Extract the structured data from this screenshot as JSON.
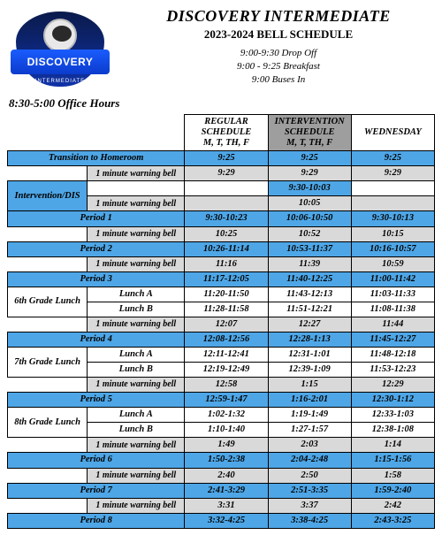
{
  "logo": {
    "name": "DISCOVERY",
    "sub": "INTERMEDIATE"
  },
  "title": {
    "main": "DISCOVERY INTERMEDIATE",
    "sub": "2023-2024 BELL SCHEDULE",
    "note1": "9:00-9:30 Drop Off",
    "note2": "9:00 - 9:25 Breakfast",
    "note3": "9:00  Buses In"
  },
  "office": "8:30-5:00 Office Hours",
  "cols": {
    "regular1": "REGULAR",
    "regular2": "SCHEDULE",
    "regular3": "M, T, TH, F",
    "int1": "INTERVENTION",
    "int2": "SCHEDULE",
    "int3": "M, T, TH, F",
    "wed": "WEDNESDAY"
  },
  "labels": {
    "transition": "Transition to Homeroom",
    "warn": "1 minute warning bell",
    "interv": "Intervention/DIS",
    "p1": "Period 1",
    "p2": "Period 2",
    "p3": "Period 3",
    "p4": "Period 4",
    "p5": "Period 5",
    "p6": "Period 6",
    "p7": "Period 7",
    "p8": "Period 8",
    "g6": "6th Grade Lunch",
    "g7": "7th Grade Lunch",
    "g8": "8th Grade Lunch",
    "la": "Lunch A",
    "lb": "Lunch B"
  },
  "t": {
    "trans": {
      "r": "9:25",
      "i": "9:25",
      "w": "9:25"
    },
    "trans_w": {
      "r": "9:29",
      "i": "9:29",
      "w": "9:29"
    },
    "interv": {
      "i": "9:30-10:03"
    },
    "interv_w": {
      "i": "10:05"
    },
    "p1": {
      "r": "9:30-10:23",
      "i": "10:06-10:50",
      "w": "9:30-10:13"
    },
    "p1w": {
      "r": "10:25",
      "i": "10:52",
      "w": "10:15"
    },
    "p2": {
      "r": "10:26-11:14",
      "i": "10:53-11:37",
      "w": "10:16-10:57"
    },
    "p2w": {
      "r": "11:16",
      "i": "11:39",
      "w": "10:59"
    },
    "p3": {
      "r": "11:17-12:05",
      "i": "11:40-12:25",
      "w": "11:00-11:42"
    },
    "g6a": {
      "r": "11:20-11:50",
      "i": "11:43-12:13",
      "w": "11:03-11:33"
    },
    "g6b": {
      "r": "11:28-11:58",
      "i": "11:51-12:21",
      "w": "11:08-11:38"
    },
    "p3w": {
      "r": "12:07",
      "i": "12:27",
      "w": "11:44"
    },
    "p4": {
      "r": "12:08-12:56",
      "i": "12:28-1:13",
      "w": "11:45-12:27"
    },
    "g7a": {
      "r": "12:11-12:41",
      "i": "12:31-1:01",
      "w": "11:48-12:18"
    },
    "g7b": {
      "r": "12:19-12:49",
      "i": "12:39-1:09",
      "w": "11:53-12:23"
    },
    "p4w": {
      "r": "12:58",
      "i": "1:15",
      "w": "12:29"
    },
    "p5": {
      "r": "12:59-1:47",
      "i": "1:16-2:01",
      "w": "12:30-1:12"
    },
    "g8a": {
      "r": "1:02-1:32",
      "i": "1:19-1:49",
      "w": "12:33-1:03"
    },
    "g8b": {
      "r": "1:10-1:40",
      "i": "1:27-1:57",
      "w": "12:38-1:08"
    },
    "p5w": {
      "r": "1:49",
      "i": "2:03",
      "w": "1:14"
    },
    "p6": {
      "r": "1:50-2:38",
      "i": "2:04-2:48",
      "w": "1:15-1:56"
    },
    "p6w": {
      "r": "2:40",
      "i": "2:50",
      "w": "1:58"
    },
    "p7": {
      "r": "2:41-3:29",
      "i": "2:51-3:35",
      "w": "1:59-2:40"
    },
    "p7w": {
      "r": "3:31",
      "i": "3:37",
      "w": "2:42"
    },
    "p8": {
      "r": "3:32-4:25",
      "i": "3:38-4:25",
      "w": "2:43-3:25"
    }
  },
  "style": {
    "blue": "#4ea6e6",
    "grey": "#d9d9d9",
    "intHeader": "#9e9e9e",
    "font": "Georgia serif italic bold"
  }
}
